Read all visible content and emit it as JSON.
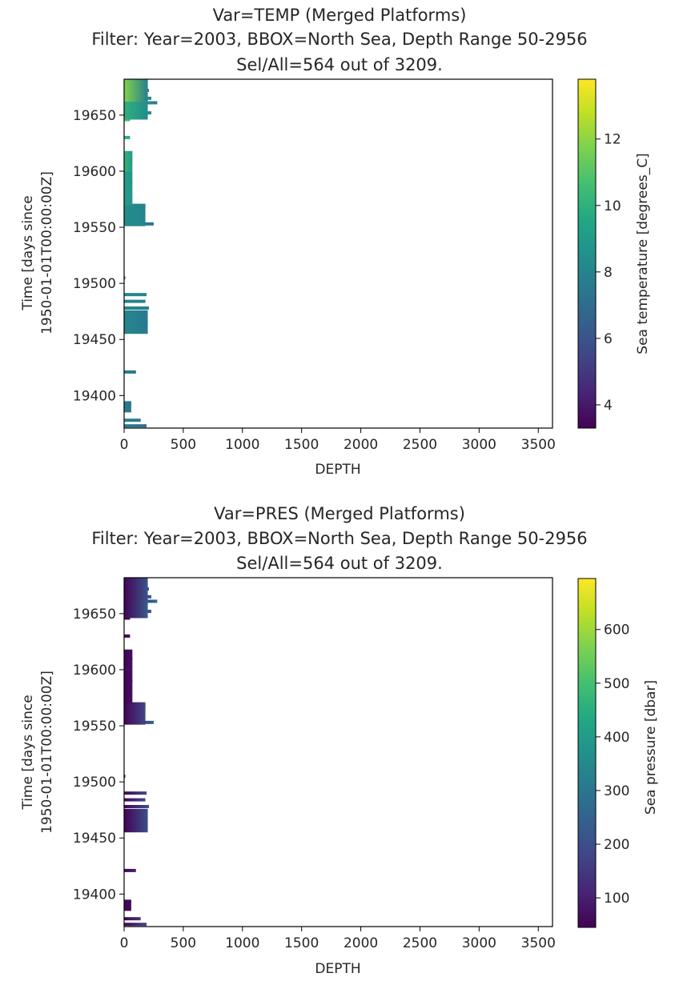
{
  "chart_data": [
    {
      "type": "heatmap",
      "title_lines": [
        "Var=TEMP (Merged Platforms)",
        "Filter: Year=2003, BBOX=North Sea, Depth Range 50-2956",
        "Sel/All=564 out of 3209."
      ],
      "xlabel": "DEPTH",
      "ylabel_lines": [
        "Time [days since",
        "1950-01-01T00:00:00Z]"
      ],
      "xlim": [
        0,
        3620
      ],
      "ylim": [
        19371,
        19682
      ],
      "xticks": [
        0,
        500,
        1000,
        1500,
        2000,
        2500,
        3000,
        3500
      ],
      "yticks": [
        19400,
        19450,
        19500,
        19550,
        19600,
        19650
      ],
      "colorbar": {
        "label": "Sea temperature [degrees_C]",
        "range": [
          3.3,
          13.8
        ],
        "ticks": [
          4,
          6,
          8,
          10,
          12
        ],
        "colormap": "viridis"
      },
      "profiles": [
        {
          "t": 19676,
          "max_depth": 200,
          "v_top": 11.5,
          "v_bottom": 8.0
        },
        {
          "t": 19672,
          "max_depth": 210,
          "v_top": 11.8,
          "v_bottom": 7.8
        },
        {
          "t": 19668,
          "max_depth": 190,
          "v_top": 11.2,
          "v_bottom": 8.0
        },
        {
          "t": 19665,
          "max_depth": 230,
          "v_top": 10.9,
          "v_bottom": 7.9
        },
        {
          "t": 19661,
          "max_depth": 280,
          "v_top": 10.5,
          "v_bottom": 7.6
        },
        {
          "t": 19657,
          "max_depth": 180,
          "v_top": 10.2,
          "v_bottom": 8.1
        },
        {
          "t": 19652,
          "max_depth": 230,
          "v_top": 10.0,
          "v_bottom": 8.3
        },
        {
          "t": 19646,
          "max_depth": 50,
          "v_top": 11.0,
          "v_bottom": 10.4
        },
        {
          "t": 19630,
          "max_depth": 50,
          "v_top": 10.0,
          "v_bottom": 9.6
        },
        {
          "t": 19610,
          "max_depth": 70,
          "v_top": 10.2,
          "v_bottom": 9.0
        },
        {
          "t": 19590,
          "max_depth": 70,
          "v_top": 9.2,
          "v_bottom": 8.7
        },
        {
          "t": 19568,
          "max_depth": 180,
          "v_top": 8.4,
          "v_bottom": 8.0
        },
        {
          "t": 19553,
          "max_depth": 250,
          "v_top": 7.9,
          "v_bottom": 7.3
        },
        {
          "t": 19505,
          "max_depth": 10,
          "v_top": 7.5,
          "v_bottom": 7.4
        },
        {
          "t": 19490,
          "max_depth": 190,
          "v_top": 8.1,
          "v_bottom": 7.9
        },
        {
          "t": 19484,
          "max_depth": 180,
          "v_top": 8.0,
          "v_bottom": 7.8
        },
        {
          "t": 19478,
          "max_depth": 210,
          "v_top": 8.1,
          "v_bottom": 7.7
        },
        {
          "t": 19466,
          "max_depth": 200,
          "v_top": 8.1,
          "v_bottom": 7.5
        },
        {
          "t": 19421,
          "max_depth": 100,
          "v_top": 7.6,
          "v_bottom": 7.3
        },
        {
          "t": 19393,
          "max_depth": 60,
          "v_top": 7.8,
          "v_bottom": 7.3
        },
        {
          "t": 19378,
          "max_depth": 140,
          "v_top": 7.9,
          "v_bottom": 7.4
        },
        {
          "t": 19373,
          "max_depth": 190,
          "v_top": 7.7,
          "v_bottom": 7.1
        }
      ]
    },
    {
      "type": "heatmap",
      "title_lines": [
        "Var=PRES (Merged Platforms)",
        "Filter: Year=2003, BBOX=North Sea, Depth Range 50-2956",
        "Sel/All=564 out of 3209."
      ],
      "xlabel": "DEPTH",
      "ylabel_lines": [
        "Time [days since",
        "1950-01-01T00:00:00Z]"
      ],
      "xlim": [
        0,
        3620
      ],
      "ylim": [
        19371,
        19682
      ],
      "xticks": [
        0,
        500,
        1000,
        1500,
        2000,
        2500,
        3000,
        3500
      ],
      "yticks": [
        19400,
        19450,
        19500,
        19550,
        19600,
        19650
      ],
      "colorbar": {
        "label": "Sea pressure [dbar]",
        "range": [
          45,
          695
        ],
        "ticks": [
          100,
          200,
          300,
          400,
          500,
          600
        ],
        "colormap": "viridis"
      },
      "profiles": [
        {
          "t": 19676,
          "max_depth": 200,
          "v_top": 50,
          "v_bottom": 200
        },
        {
          "t": 19672,
          "max_depth": 210,
          "v_top": 50,
          "v_bottom": 210
        },
        {
          "t": 19668,
          "max_depth": 190,
          "v_top": 50,
          "v_bottom": 190
        },
        {
          "t": 19665,
          "max_depth": 230,
          "v_top": 50,
          "v_bottom": 230
        },
        {
          "t": 19661,
          "max_depth": 280,
          "v_top": 50,
          "v_bottom": 280
        },
        {
          "t": 19657,
          "max_depth": 180,
          "v_top": 50,
          "v_bottom": 180
        },
        {
          "t": 19652,
          "max_depth": 230,
          "v_top": 50,
          "v_bottom": 230
        },
        {
          "t": 19646,
          "max_depth": 50,
          "v_top": 50,
          "v_bottom": 55
        },
        {
          "t": 19630,
          "max_depth": 50,
          "v_top": 50,
          "v_bottom": 55
        },
        {
          "t": 19610,
          "max_depth": 70,
          "v_top": 50,
          "v_bottom": 70
        },
        {
          "t": 19590,
          "max_depth": 70,
          "v_top": 50,
          "v_bottom": 70
        },
        {
          "t": 19568,
          "max_depth": 180,
          "v_top": 50,
          "v_bottom": 180
        },
        {
          "t": 19553,
          "max_depth": 250,
          "v_top": 50,
          "v_bottom": 250
        },
        {
          "t": 19505,
          "max_depth": 10,
          "v_top": 50,
          "v_bottom": 52
        },
        {
          "t": 19490,
          "max_depth": 190,
          "v_top": 50,
          "v_bottom": 190
        },
        {
          "t": 19484,
          "max_depth": 180,
          "v_top": 50,
          "v_bottom": 180
        },
        {
          "t": 19478,
          "max_depth": 210,
          "v_top": 50,
          "v_bottom": 210
        },
        {
          "t": 19466,
          "max_depth": 200,
          "v_top": 50,
          "v_bottom": 200
        },
        {
          "t": 19421,
          "max_depth": 100,
          "v_top": 50,
          "v_bottom": 100
        },
        {
          "t": 19393,
          "max_depth": 60,
          "v_top": 50,
          "v_bottom": 60
        },
        {
          "t": 19378,
          "max_depth": 140,
          "v_top": 50,
          "v_bottom": 140
        },
        {
          "t": 19373,
          "max_depth": 190,
          "v_top": 50,
          "v_bottom": 190
        }
      ]
    }
  ]
}
